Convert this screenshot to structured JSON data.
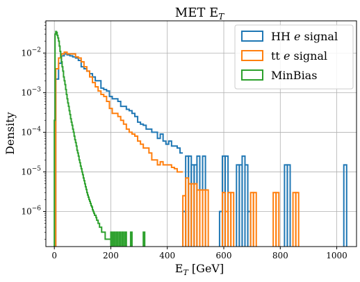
{
  "chart_data": {
    "type": "histogram",
    "title": "MET E_T",
    "xlabel": "E_T [GeV]",
    "ylabel": "Density",
    "xlim": [
      -30,
      1070
    ],
    "ylim": [
      1.3e-07,
      0.065
    ],
    "yscale": "log",
    "grid": true,
    "legend_position": "top-right",
    "x_ticks": [
      0,
      200,
      400,
      600,
      800,
      1000
    ],
    "x_tick_labels": [
      "0",
      "200",
      "400",
      "600",
      "800",
      "1000"
    ],
    "y_ticks": [
      1e-06,
      1e-05,
      0.0001,
      0.001,
      0.01
    ],
    "y_tick_labels": [
      {
        "base": "10",
        "exp": "−6"
      },
      {
        "base": "10",
        "exp": "−5"
      },
      {
        "base": "10",
        "exp": "−4"
      },
      {
        "base": "10",
        "exp": "−3"
      },
      {
        "base": "10",
        "exp": "−2"
      }
    ],
    "series": [
      {
        "name": "HH e signal",
        "color": "#1f77b4",
        "bin_edges": [
          5,
          15,
          25,
          35,
          45,
          55,
          65,
          75,
          85,
          95,
          105,
          115,
          125,
          135,
          145,
          155,
          165,
          175,
          185,
          195,
          205,
          215,
          225,
          235,
          245,
          255,
          265,
          275,
          285,
          295,
          305,
          315,
          325,
          335,
          345,
          355,
          365,
          375,
          385,
          395,
          405,
          415,
          425,
          435,
          445,
          455,
          465,
          475,
          485,
          495,
          505,
          515,
          525,
          535,
          545,
          555,
          565,
          575,
          585,
          595,
          605,
          615,
          625,
          635,
          645,
          655,
          665,
          675,
          685,
          695,
          705,
          715,
          725,
          735,
          745,
          755,
          765,
          775,
          785,
          795,
          805,
          815,
          825,
          835,
          845,
          855,
          865,
          875,
          885,
          895,
          905,
          915,
          925,
          935,
          945,
          955,
          965,
          975,
          985,
          995,
          1005,
          1015,
          1025,
          1035,
          1045
        ],
        "values": [
          0.0022,
          0.0055,
          0.0085,
          0.0095,
          0.009,
          0.0085,
          0.008,
          0.0075,
          0.0065,
          0.0045,
          0.004,
          0.0035,
          0.003,
          0.0025,
          0.002,
          0.002,
          0.0013,
          0.0012,
          0.0011,
          0.0008,
          0.0007,
          0.0007,
          0.0006,
          0.00045,
          0.00045,
          0.00038,
          0.00035,
          0.0003,
          0.00025,
          0.00018,
          0.00016,
          0.00015,
          0.00012,
          0.00012,
          0.0001,
          0.0001,
          7e-05,
          9e-05,
          6e-05,
          5e-05,
          6e-05,
          4.5e-05,
          4.5e-05,
          4e-05,
          3e-05,
          1e-06,
          2.5e-05,
          2.5e-05,
          2.5e-05,
          1.5e-05,
          1.5e-05,
          2.5e-05,
          2.5e-05,
          0,
          0,
          0,
          0,
          0,
          0,
          0,
          0,
          0,
          0,
          0,
          0,
          0,
          0,
          0,
          0,
          0,
          0,
          0,
          0,
          0,
          0,
          0,
          0,
          0,
          0,
          0,
          0,
          0,
          0,
          0,
          0,
          0,
          0,
          0,
          0,
          0,
          0,
          0,
          0,
          0,
          0,
          0,
          0,
          0,
          0,
          0,
          0,
          0,
          0,
          0,
          0
        ],
        "extra_bins": [
          {
            "x0": 455,
            "x1": 465,
            "v": 1e-06
          },
          {
            "x0": 465,
            "x1": 475,
            "v": 2.5e-05
          },
          {
            "x0": 475,
            "x1": 485,
            "v": 2.5e-05
          },
          {
            "x0": 485,
            "x1": 495,
            "v": 1.5e-05
          },
          {
            "x0": 495,
            "x1": 505,
            "v": 1.5e-05
          },
          {
            "x0": 505,
            "x1": 515,
            "v": 2.5e-05
          },
          {
            "x0": 525,
            "x1": 535,
            "v": 2.5e-05
          },
          {
            "x0": 585,
            "x1": 595,
            "v": 1e-06
          },
          {
            "x0": 595,
            "x1": 605,
            "v": 2.5e-05
          },
          {
            "x0": 605,
            "x1": 615,
            "v": 2.5e-05
          },
          {
            "x0": 645,
            "x1": 655,
            "v": 1.5e-05
          },
          {
            "x0": 655,
            "x1": 665,
            "v": 1.5e-05
          },
          {
            "x0": 665,
            "x1": 675,
            "v": 2.5e-05
          },
          {
            "x0": 675,
            "x1": 685,
            "v": 1.5e-05
          },
          {
            "x0": 685,
            "x1": 695,
            "v": 1e-06
          },
          {
            "x0": 815,
            "x1": 825,
            "v": 1.5e-05
          },
          {
            "x0": 825,
            "x1": 835,
            "v": 1.5e-05
          },
          {
            "x0": 1025,
            "x1": 1035,
            "v": 1.5e-05
          }
        ]
      },
      {
        "name": "tt e signal",
        "color": "#ff7f0e",
        "bin_edges": [
          5,
          15,
          25,
          35,
          45,
          55,
          65,
          75,
          85,
          95,
          105,
          115,
          125,
          135,
          145,
          155,
          165,
          175,
          185,
          195,
          205,
          215,
          225,
          235,
          245,
          255,
          265,
          275,
          285,
          295,
          305,
          315,
          325,
          335,
          345,
          355,
          365,
          375,
          385,
          395,
          405,
          415,
          425,
          435,
          445,
          455,
          465,
          475,
          485,
          495,
          505,
          515,
          525,
          535,
          545
        ],
        "values": [
          0.004,
          0.0075,
          0.0095,
          0.0105,
          0.0095,
          0.0095,
          0.0095,
          0.008,
          0.0075,
          0.006,
          0.0045,
          0.0035,
          0.0025,
          0.0018,
          0.0014,
          0.0011,
          0.0009,
          0.0008,
          0.0006,
          0.0004,
          0.0003,
          0.0003,
          0.00025,
          0.0002,
          0.00016,
          0.00012,
          0.0001,
          9e-05,
          8e-05,
          6e-05,
          5e-05,
          4e-05,
          4e-05,
          3e-05,
          2e-05,
          2e-05,
          1.5e-05,
          1.8e-05,
          1.5e-05,
          1.5e-05,
          1.5e-05,
          1.3e-05,
          1.2e-05,
          1e-05,
          1e-05,
          1e-05,
          3.5e-06,
          7e-06,
          4e-06,
          7e-06,
          3e-06,
          3e-06,
          3e-06,
          3e-06
        ],
        "extra_bins": [
          {
            "x0": 455,
            "x1": 465,
            "v": 2.5e-06
          },
          {
            "x0": 465,
            "x1": 475,
            "v": 7e-06
          },
          {
            "x0": 475,
            "x1": 485,
            "v": 5e-06
          },
          {
            "x0": 485,
            "x1": 495,
            "v": 5e-06
          },
          {
            "x0": 495,
            "x1": 505,
            "v": 5e-06
          },
          {
            "x0": 505,
            "x1": 515,
            "v": 3.5e-06
          },
          {
            "x0": 515,
            "x1": 525,
            "v": 3.5e-06
          },
          {
            "x0": 525,
            "x1": 535,
            "v": 3.5e-06
          },
          {
            "x0": 535,
            "x1": 545,
            "v": 3.5e-06
          },
          {
            "x0": 595,
            "x1": 605,
            "v": 3e-06
          },
          {
            "x0": 605,
            "x1": 615,
            "v": 1e-06
          },
          {
            "x0": 615,
            "x1": 625,
            "v": 3e-06
          },
          {
            "x0": 625,
            "x1": 635,
            "v": 3e-06
          },
          {
            "x0": 695,
            "x1": 705,
            "v": 3e-06
          },
          {
            "x0": 705,
            "x1": 715,
            "v": 3e-06
          },
          {
            "x0": 775,
            "x1": 785,
            "v": 3e-06
          },
          {
            "x0": 785,
            "x1": 795,
            "v": 3e-06
          },
          {
            "x0": 845,
            "x1": 855,
            "v": 3e-06
          },
          {
            "x0": 855,
            "x1": 865,
            "v": 3e-06
          }
        ]
      },
      {
        "name": "MinBias",
        "color": "#2ca02c",
        "bin_edges": [
          0,
          2.5,
          5,
          7.5,
          10,
          12.5,
          15,
          17.5,
          20,
          22.5,
          25,
          27.5,
          30,
          32.5,
          35,
          37.5,
          40,
          42.5,
          45,
          47.5,
          50,
          52.5,
          55,
          57.5,
          60,
          62.5,
          65,
          67.5,
          70,
          72.5,
          75,
          77.5,
          80,
          82.5,
          85,
          87.5,
          90,
          92.5,
          95,
          97.5,
          100,
          102.5,
          105,
          107.5,
          110,
          112.5,
          115,
          117.5,
          120,
          122.5,
          125,
          127.5,
          130,
          132.5,
          135,
          137.5,
          140,
          142.5,
          145,
          147.5,
          150,
          152.5,
          155,
          157.5,
          160,
          162.5,
          165,
          167.5,
          170,
          172.5,
          175,
          177.5,
          180,
          182.5,
          185,
          187.5,
          190,
          192.5,
          195,
          197.5,
          200
        ],
        "values": [
          0.0002,
          0.03,
          0.035,
          0.033,
          0.028,
          0.024,
          0.02,
          0.015,
          0.011,
          0.008,
          0.006,
          0.0045,
          0.0035,
          0.0025,
          0.002,
          0.0016,
          0.0012,
          0.0009,
          0.0007,
          0.00055,
          0.00045,
          0.00035,
          0.00028,
          0.00022,
          0.00018,
          0.00015,
          0.00012,
          0.0001,
          8e-05,
          6.5e-05,
          5.5e-05,
          4.5e-05,
          3.5e-05,
          3e-05,
          2.5e-05,
          2e-05,
          1.7e-05,
          1.4e-05,
          1.2e-05,
          1e-05,
          8.5e-06,
          7e-06,
          6e-06,
          5e-06,
          4.2e-06,
          3.6e-06,
          3e-06,
          2.6e-06,
          2.3e-06,
          2e-06,
          1.8e-06,
          1.6e-06,
          1.4e-06,
          1.3e-06,
          1.1e-06,
          1e-06,
          9e-07,
          8e-07,
          8e-07,
          7e-07,
          6e-07,
          6e-07,
          5e-07,
          5e-07,
          4e-07,
          4e-07,
          4e-07,
          3e-07,
          3e-07,
          3e-07,
          3e-07,
          3e-07,
          2e-07,
          2e-07,
          2e-07,
          2e-07,
          2e-07,
          2e-07,
          2e-07,
          2e-07
        ],
        "extra_bins": [
          {
            "x0": 200,
            "x1": 205,
            "v": 3e-07
          },
          {
            "x0": 210,
            "x1": 215,
            "v": 3e-07
          },
          {
            "x0": 220,
            "x1": 225,
            "v": 3e-07
          },
          {
            "x0": 230,
            "x1": 235,
            "v": 3e-07
          },
          {
            "x0": 240,
            "x1": 245,
            "v": 3e-07
          },
          {
            "x0": 250,
            "x1": 255,
            "v": 3e-07
          },
          {
            "x0": 270,
            "x1": 275,
            "v": 3e-07
          },
          {
            "x0": 315,
            "x1": 320,
            "v": 3e-07
          }
        ]
      }
    ]
  }
}
